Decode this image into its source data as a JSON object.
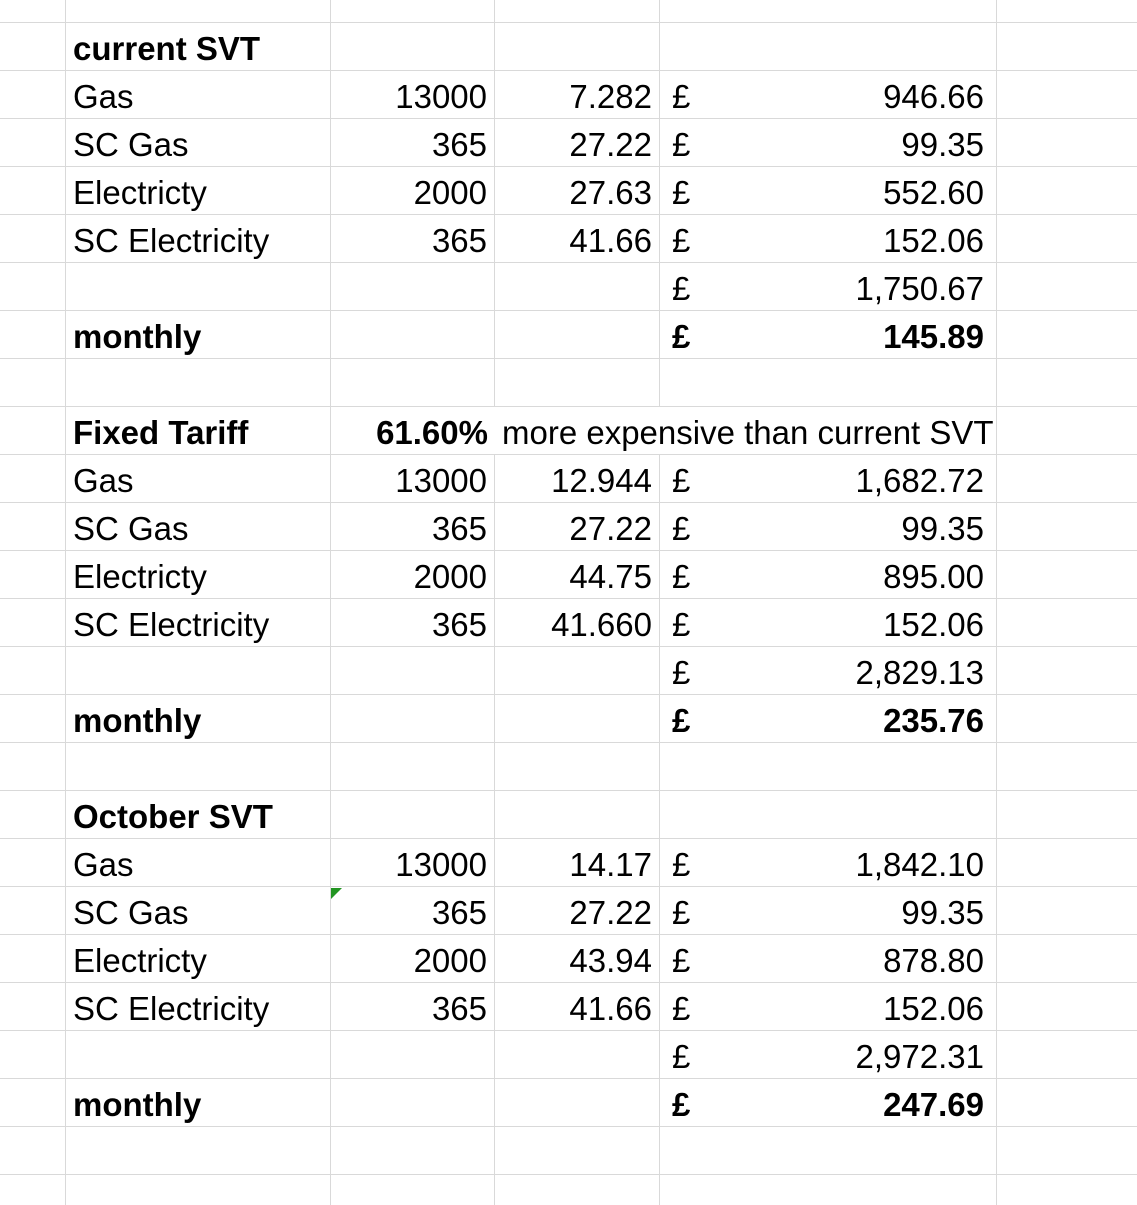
{
  "app": "spreadsheet-tariff-comparison",
  "colors": {
    "background": "#ffffff",
    "gridline": "#d9d9d9",
    "text": "#000000",
    "error_indicator_green": "#229522"
  },
  "icons": {
    "error_indicator": "green-corner-triangle"
  },
  "sections": [
    {
      "title": "current SVT",
      "rows": [
        {
          "label": "Gas",
          "units": "13000",
          "rate": "7.282",
          "currency": "£",
          "amount": "946.66"
        },
        {
          "label": "SC Gas",
          "units": "365",
          "rate": "27.22",
          "currency": "£",
          "amount": "99.35"
        },
        {
          "label": "Electricty",
          "units": "2000",
          "rate": "27.63",
          "currency": "£",
          "amount": "552.60"
        },
        {
          "label": "SC Electricity",
          "units": "365",
          "rate": "41.66",
          "currency": "£",
          "amount": "152.06"
        }
      ],
      "total": {
        "currency": "£",
        "amount": "1,750.67"
      },
      "monthly": {
        "label": "monthly",
        "currency": "£",
        "amount": "145.89"
      }
    },
    {
      "title": "Fixed Tariff",
      "comparison": {
        "percent": "61.60%",
        "text": "more expensive than current SVT"
      },
      "rows": [
        {
          "label": "Gas",
          "units": "13000",
          "rate": "12.944",
          "currency": "£",
          "amount": "1,682.72"
        },
        {
          "label": "SC Gas",
          "units": "365",
          "rate": "27.22",
          "currency": "£",
          "amount": "99.35"
        },
        {
          "label": "Electricty",
          "units": "2000",
          "rate": "44.75",
          "currency": "£",
          "amount": "895.00"
        },
        {
          "label": "SC Electricity",
          "units": "365",
          "rate": "41.660",
          "currency": "£",
          "amount": "152.06"
        }
      ],
      "total": {
        "currency": "£",
        "amount": "2,829.13"
      },
      "monthly": {
        "label": "monthly",
        "currency": "£",
        "amount": "235.76"
      }
    },
    {
      "title": "October SVT",
      "rows": [
        {
          "label": "Gas",
          "units": "13000",
          "rate": "14.17",
          "currency": "£",
          "amount": "1,842.10"
        },
        {
          "label": "SC Gas",
          "units": "365",
          "rate": "27.22",
          "currency": "£",
          "amount": "99.35",
          "has_indicator": true
        },
        {
          "label": "Electricty",
          "units": "2000",
          "rate": "43.94",
          "currency": "£",
          "amount": "878.80"
        },
        {
          "label": "SC Electricity",
          "units": "365",
          "rate": "41.66",
          "currency": "£",
          "amount": "152.06"
        }
      ],
      "total": {
        "currency": "£",
        "amount": "2,972.31"
      },
      "monthly": {
        "label": "monthly",
        "currency": "£",
        "amount": "247.69"
      }
    }
  ]
}
